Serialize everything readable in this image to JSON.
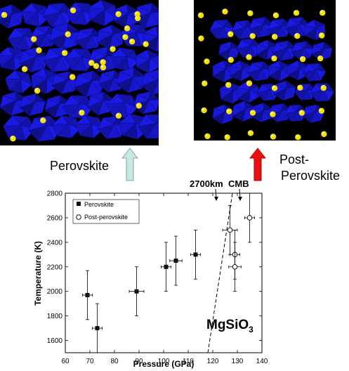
{
  "labels": {
    "perovskite": "Perovskite",
    "post_line1": "Post-",
    "post_line2": "Perovskite",
    "depth": "2700km",
    "cmb": "CMB",
    "mgsio3": "MgSiO",
    "mgsio3_sub": "3"
  },
  "colors": {
    "arrow_perov": "#c8e8e4",
    "arrow_post": "#e81010",
    "polyhedra": "#1a1ae6",
    "atoms": "#f5e000",
    "panel_bg": "#000000"
  },
  "chart_data": {
    "type": "scatter",
    "title": "",
    "xlabel": "Pressure (GPa)",
    "ylabel": "Temperature (K)",
    "xlim": [
      60,
      140
    ],
    "ylim": [
      1500,
      2800
    ],
    "xticks": [
      60,
      70,
      80,
      90,
      100,
      110,
      120,
      130,
      140
    ],
    "yticks": [
      1600,
      1800,
      2000,
      2200,
      2400,
      2600,
      2800
    ],
    "legend_position": "top-left",
    "series": [
      {
        "name": "Perovskite",
        "marker": "filled-square",
        "points": [
          {
            "x": 69,
            "y": 1970,
            "xerr": 2,
            "yerr": 200
          },
          {
            "x": 73,
            "y": 1700,
            "xerr": 2,
            "yerr": 200
          },
          {
            "x": 89,
            "y": 2000,
            "xerr": 3,
            "yerr": 200
          },
          {
            "x": 101,
            "y": 2200,
            "xerr": 2,
            "yerr": 200
          },
          {
            "x": 105,
            "y": 2250,
            "xerr": 2.5,
            "yerr": 200
          },
          {
            "x": 113,
            "y": 2300,
            "xerr": 2,
            "yerr": 200
          }
        ]
      },
      {
        "name": "Post-perovskite",
        "marker": "open-circle",
        "points": [
          {
            "x": 127,
            "y": 2500,
            "xerr": 3,
            "yerr": 200
          },
          {
            "x": 129,
            "y": 2300,
            "xerr": 2,
            "yerr": 200
          },
          {
            "x": 129,
            "y": 2200,
            "xerr": 2.5,
            "yerr": 200
          },
          {
            "x": 135,
            "y": 2600,
            "xerr": 2,
            "yerr": 200
          }
        ]
      }
    ],
    "phase_boundary": [
      [
        118,
        1500
      ],
      [
        128,
        2800
      ]
    ]
  }
}
